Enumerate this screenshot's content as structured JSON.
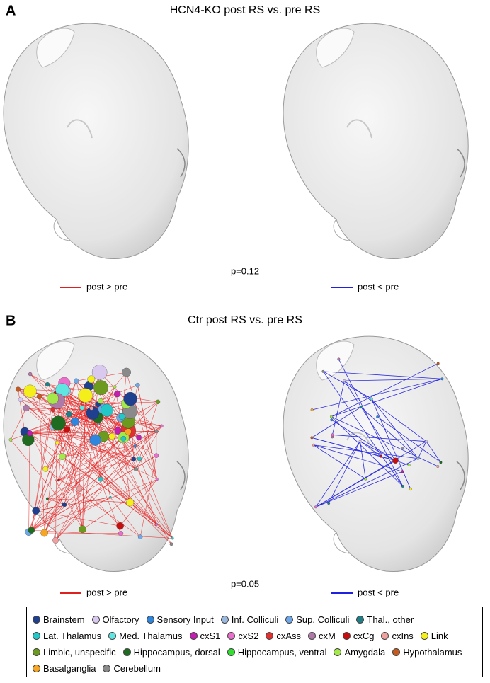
{
  "panels": [
    {
      "label": "A",
      "title": "HCN4-KO post RS vs. pre RS",
      "p": "p=0.12",
      "legend_left": "post > pre",
      "legend_right": "post < pre"
    },
    {
      "label": "B",
      "title": "Ctr post RS vs. pre RS",
      "p": "p=0.05",
      "legend_left": "post > pre",
      "legend_right": "post < pre"
    }
  ],
  "legend": {
    "rows": [
      [
        {
          "name": "Brainstem",
          "color": "#1f3f8f"
        },
        {
          "name": "Olfactory",
          "color": "#d9c9ee"
        },
        {
          "name": "Sensory Input",
          "color": "#2e86de"
        },
        {
          "name": "Inf. Colliculi",
          "color": "#9bb8de"
        },
        {
          "name": "Sup. Colliculi",
          "color": "#6fa8e8"
        },
        {
          "name": "Thal., other",
          "color": "#1f7f86"
        }
      ],
      [
        {
          "name": "Lat. Thalamus",
          "color": "#22c7c7"
        },
        {
          "name": "Med. Thalamus",
          "color": "#5fe6e0"
        },
        {
          "name": "cxS1",
          "color": "#c21eb0"
        },
        {
          "name": "cxS2",
          "color": "#ea6ecb"
        },
        {
          "name": "cxAss",
          "color": "#e03030"
        },
        {
          "name": "cxM",
          "color": "#b07aa8"
        },
        {
          "name": "cxCg",
          "color": "#c80d0d"
        },
        {
          "name": "cxIns",
          "color": "#f0a0a0"
        },
        {
          "name": "Link",
          "color": "#f4ee1a"
        }
      ],
      [
        {
          "name": "Limbic, unspecific",
          "color": "#6c9a1e"
        },
        {
          "name": "Hippocampus, dorsal",
          "color": "#1f6b1f"
        },
        {
          "name": "Hippocampus, ventral",
          "color": "#2fe02f"
        },
        {
          "name": "Amygdala",
          "color": "#a4e84a"
        },
        {
          "name": "Hypothalamus",
          "color": "#c65a1e"
        }
      ],
      [
        {
          "name": "Basalganglia",
          "color": "#f5a623"
        },
        {
          "name": "Cerebellum",
          "color": "#8a8a8a"
        }
      ]
    ]
  }
}
